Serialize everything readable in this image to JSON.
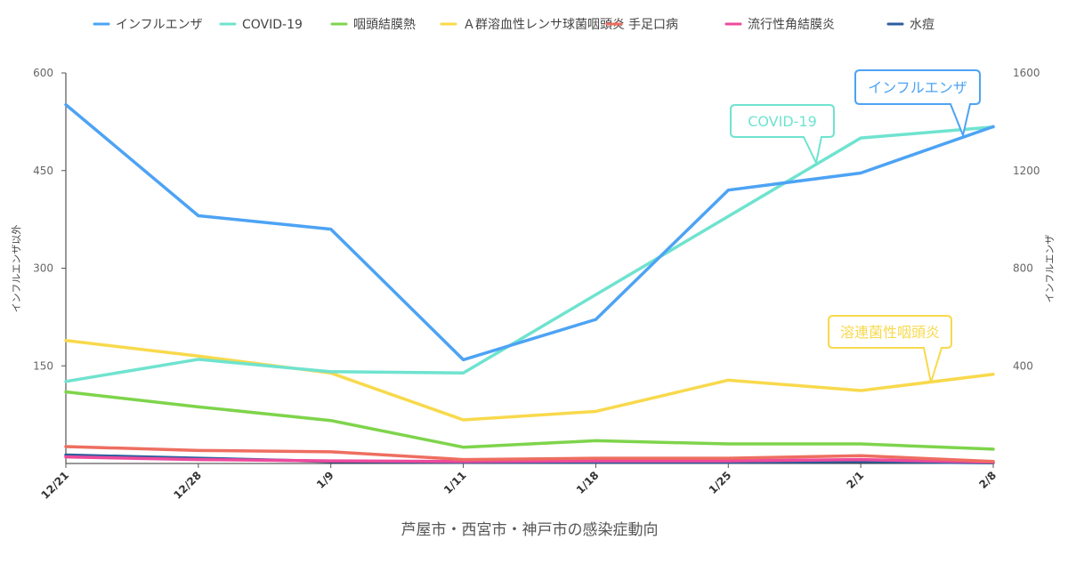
{
  "chart_data": {
    "type": "line",
    "title": "芦屋市・西宮市・神戸市の感染症動向",
    "categories": [
      "12/21",
      "12/28",
      "1/9",
      "1/11",
      "1/18",
      "1/25",
      "2/1",
      "2/8"
    ],
    "y_left": {
      "label": "インフルエンザ以外",
      "range": [
        0,
        600
      ],
      "ticks": [
        150,
        300,
        450,
        600
      ]
    },
    "y_right": {
      "label": "インフルエンザ",
      "range": [
        0,
        1600
      ],
      "ticks": [
        400,
        800,
        1200,
        1600
      ]
    },
    "legend_position": "top",
    "grid": false,
    "series": [
      {
        "name": "インフルエンザ",
        "axis": "right",
        "color": "#4da3f4",
        "values": [
          1470,
          1015,
          960,
          425,
          590,
          1120,
          1190,
          1380
        ]
      },
      {
        "name": "COVID-19",
        "axis": "left",
        "color": "#6fe3cf",
        "values": [
          126,
          160,
          141,
          139,
          null,
          null,
          500,
          517
        ]
      },
      {
        "name": "咽頭結膜熱",
        "axis": "left",
        "color": "#7ed44b",
        "values": [
          110,
          87,
          66,
          25,
          35,
          30,
          30,
          22
        ]
      },
      {
        "name": "Ａ群溶血性レンサ球菌咽頭炎",
        "axis": "left",
        "color": "#f8d94c",
        "values": [
          189,
          165,
          139,
          67,
          80,
          128,
          112,
          137
        ]
      },
      {
        "name": "手足口病",
        "axis": "left",
        "color": "#ee6e60",
        "values": [
          26,
          20,
          18,
          6,
          8,
          8,
          12,
          3
        ]
      },
      {
        "name": "流行性角結膜炎",
        "axis": "left",
        "color": "#ee4a9c",
        "values": [
          10,
          6,
          4,
          3,
          4,
          4,
          6,
          2
        ]
      },
      {
        "name": "水痘",
        "axis": "left",
        "color": "#2b5d9e",
        "values": [
          13,
          8,
          3,
          2,
          2,
          2,
          3,
          1
        ]
      }
    ],
    "annotations": [
      {
        "text": "インフルエンザ",
        "series": 0,
        "color": "#4da3f4"
      },
      {
        "text": "COVID-19",
        "series": 1,
        "color": "#6fe3cf"
      },
      {
        "text": "溶連菌性咽頭炎",
        "series": 3,
        "color": "#f8d94c"
      }
    ]
  }
}
